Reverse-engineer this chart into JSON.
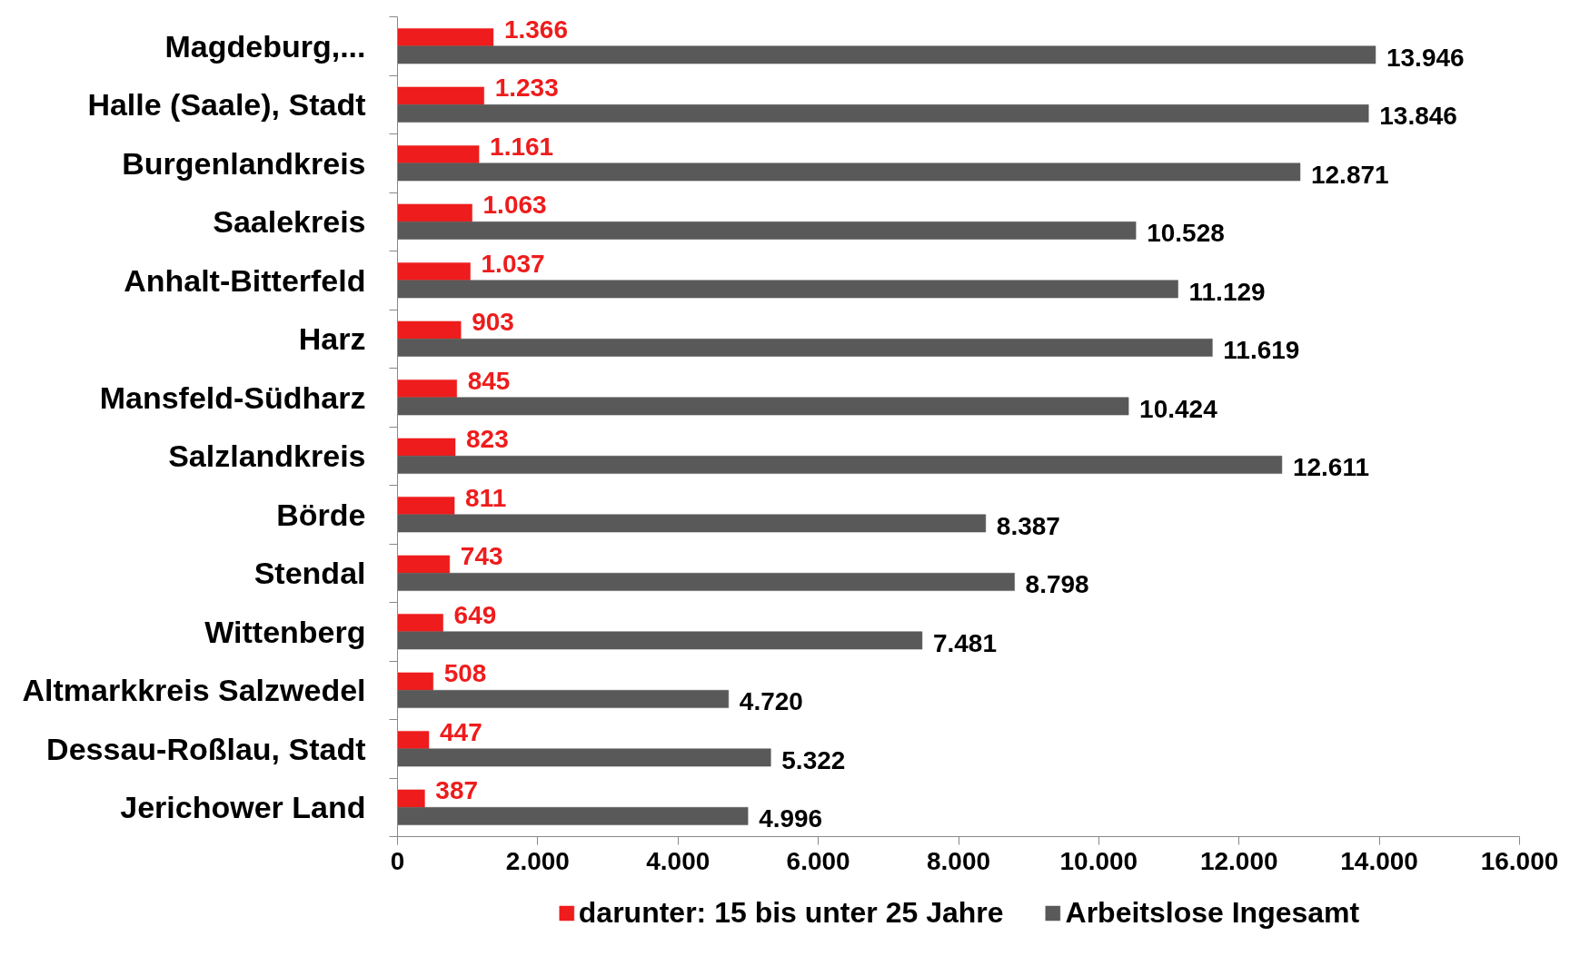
{
  "chart_data": {
    "type": "bar",
    "orientation": "horizontal",
    "categories": [
      "Magdeburg,...",
      "Halle (Saale), Stadt",
      "Burgenlandkreis",
      "Saalekreis",
      "Anhalt-Bitterfeld",
      "Harz",
      "Mansfeld-Südharz",
      "Salzlandkreis",
      "Börde",
      "Stendal",
      "Wittenberg",
      "Altmarkkreis Salzwedel",
      "Dessau-Roßlau, Stadt",
      "Jerichower Land"
    ],
    "series": [
      {
        "name": "darunter: 15 bis unter 25 Jahre",
        "color": "#ee1c1c",
        "values": [
          1366,
          1233,
          1161,
          1063,
          1037,
          903,
          845,
          823,
          811,
          743,
          649,
          508,
          447,
          387
        ],
        "value_labels": [
          "1.366",
          "1.233",
          "1.161",
          "1.063",
          "1.037",
          "903",
          "845",
          "823",
          "811",
          "743",
          "649",
          "508",
          "447",
          "387"
        ]
      },
      {
        "name": "Arbeitslose Ingesamt",
        "color": "#595959",
        "values": [
          13946,
          13846,
          12871,
          10528,
          11129,
          11619,
          10424,
          12611,
          8387,
          8798,
          7481,
          4720,
          5322,
          4996
        ],
        "value_labels": [
          "13.946",
          "13.846",
          "12.871",
          "10.528",
          "11.129",
          "11.619",
          "10.424",
          "12.611",
          "8.387",
          "8.798",
          "7.481",
          "4.720",
          "5.322",
          "4.996"
        ]
      }
    ],
    "xlim": [
      0,
      16000
    ],
    "xticks": [
      0,
      {
        "value": 2000,
        "label": "2.000"
      },
      {
        "value": 4000,
        "label": "4.000"
      },
      {
        "value": 6000,
        "label": "6.000"
      },
      {
        "value": 8000,
        "label": "8.000"
      },
      {
        "value": 10000,
        "label": "10.000"
      },
      {
        "value": 12000,
        "label": "12.000"
      },
      {
        "value": 14000,
        "label": "14.000"
      },
      {
        "value": 16000,
        "label": "16.000"
      }
    ],
    "grid": false,
    "legend": "bottom"
  }
}
